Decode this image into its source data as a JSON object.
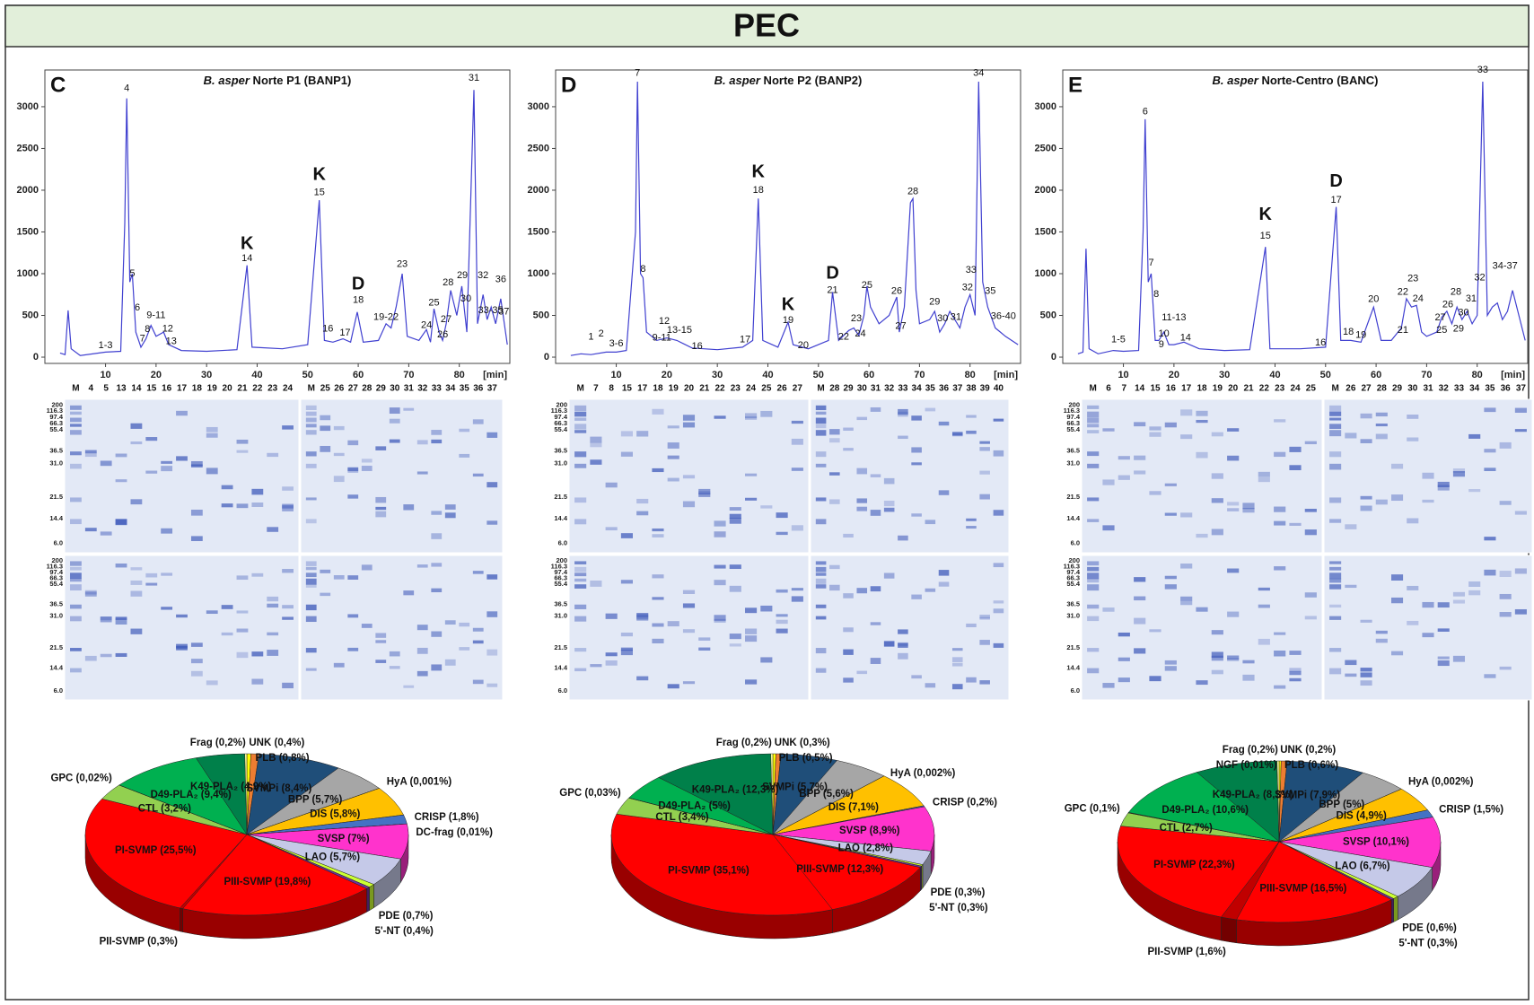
{
  "header": {
    "title": "PEC"
  },
  "gels": [
    {
      "lanes_left": [
        "M",
        "4",
        "5",
        "13",
        "14",
        "15",
        "16",
        "17",
        "18",
        "19",
        "20",
        "21",
        "22",
        "23",
        "24"
      ],
      "lanes_right": [
        "M",
        "25",
        "26",
        "27",
        "28",
        "29",
        "30",
        "31",
        "32",
        "33",
        "34",
        "35",
        "36",
        "37"
      ],
      "markers": [
        "200",
        "116.3",
        "97.4",
        "66.3",
        "55.4",
        "36.5",
        "31.0",
        "21.5",
        "14.4",
        "6.0"
      ]
    },
    {
      "lanes_left": [
        "M",
        "7",
        "8",
        "15",
        "17",
        "18",
        "19",
        "20",
        "21",
        "22",
        "23",
        "24",
        "25",
        "26",
        "27"
      ],
      "lanes_right": [
        "M",
        "28",
        "29",
        "30",
        "31",
        "32",
        "33",
        "34",
        "35",
        "36",
        "37",
        "38",
        "39",
        "40"
      ],
      "markers": [
        "200",
        "116.3",
        "97.4",
        "66.3",
        "55.4",
        "36.5",
        "31.0",
        "21.5",
        "14.4",
        "6.0"
      ]
    },
    {
      "lanes_left": [
        "M",
        "6",
        "7",
        "14",
        "15",
        "16",
        "17",
        "18",
        "19",
        "20",
        "21",
        "22",
        "23",
        "24",
        "25"
      ],
      "lanes_right": [
        "M",
        "26",
        "27",
        "28",
        "29",
        "30",
        "31",
        "32",
        "33",
        "34",
        "35",
        "36",
        "37"
      ],
      "markers": [
        "200",
        "116.3",
        "97.4",
        "66.3",
        "55.4",
        "36.5",
        "31.0",
        "21.5",
        "14.4",
        "6.0"
      ]
    }
  ],
  "chart_data": [
    {
      "type": "line",
      "panel_label": "C",
      "title_species": "B. asper",
      "title": " Norte P1 (BANP1)",
      "xlabel": "[min]",
      "color": "#4040d0",
      "xlim": [
        -2,
        90
      ],
      "ylim": [
        -75,
        3440
      ],
      "xticks": [
        10,
        20,
        30,
        40,
        50,
        60,
        70,
        80
      ],
      "yticks": [
        0,
        500,
        1000,
        1500,
        2000,
        2500,
        3000
      ],
      "x": [
        1,
        2,
        2.6,
        3.2,
        5,
        10,
        13,
        13.8,
        14.2,
        14.8,
        15.3,
        16,
        17,
        18,
        19,
        20,
        21.5,
        22.5,
        25,
        30,
        36,
        38,
        39,
        45,
        50,
        52.3,
        53.3,
        55,
        57,
        58.5,
        59.8,
        61,
        64,
        65.5,
        66.5,
        67.5,
        68.7,
        69.7,
        72,
        73.5,
        74.3,
        75,
        76,
        76.7,
        77.4,
        78.3,
        79.5,
        80.5,
        81.5,
        82.9,
        83.6,
        84.7,
        85.5,
        86.3,
        87.2,
        88.2,
        89.5
      ],
      "values": [
        50,
        30,
        560,
        100,
        20,
        60,
        70,
        1600,
        3100,
        900,
        1000,
        300,
        120,
        220,
        380,
        250,
        300,
        150,
        80,
        70,
        90,
        1100,
        120,
        100,
        150,
        1880,
        200,
        180,
        220,
        180,
        540,
        180,
        200,
        400,
        350,
        600,
        1000,
        250,
        200,
        330,
        180,
        580,
        300,
        200,
        400,
        800,
        500,
        850,
        300,
        3200,
        400,
        750,
        450,
        600,
        400,
        700,
        150
      ],
      "annotations": [
        {
          "text": "1-3",
          "x": 10,
          "y": 140
        },
        {
          "text": "4",
          "x": 14.2,
          "y": 3220
        },
        {
          "text": "5",
          "x": 15.3,
          "y": 1000
        },
        {
          "text": "6",
          "x": 16.3,
          "y": 590
        },
        {
          "text": "7",
          "x": 17.3,
          "y": 220
        },
        {
          "text": "8",
          "x": 18.3,
          "y": 330
        },
        {
          "text": "9-11",
          "x": 20,
          "y": 500
        },
        {
          "text": "12",
          "x": 22.3,
          "y": 340
        },
        {
          "text": "13",
          "x": 23,
          "y": 190
        },
        {
          "text": "14",
          "x": 38,
          "y": 1180
        },
        {
          "text": "K",
          "x": 38,
          "y": 1350
        },
        {
          "text": "15",
          "x": 52.3,
          "y": 1970
        },
        {
          "text": "K",
          "x": 52.3,
          "y": 2180
        },
        {
          "text": "16",
          "x": 54,
          "y": 340
        },
        {
          "text": "17",
          "x": 57.4,
          "y": 290
        },
        {
          "text": "18",
          "x": 60,
          "y": 680
        },
        {
          "text": "D",
          "x": 60,
          "y": 870
        },
        {
          "text": "19-22",
          "x": 65.5,
          "y": 480
        },
        {
          "text": "23",
          "x": 68.7,
          "y": 1110
        },
        {
          "text": "24",
          "x": 73.5,
          "y": 380
        },
        {
          "text": "25",
          "x": 75,
          "y": 650
        },
        {
          "text": "26",
          "x": 76.7,
          "y": 270
        },
        {
          "text": "27",
          "x": 77.4,
          "y": 450
        },
        {
          "text": "28",
          "x": 77.8,
          "y": 890
        },
        {
          "text": "29",
          "x": 80.6,
          "y": 980
        },
        {
          "text": "30",
          "x": 81.3,
          "y": 700
        },
        {
          "text": "31",
          "x": 82.9,
          "y": 3340
        },
        {
          "text": "32",
          "x": 84.7,
          "y": 980
        },
        {
          "text": "33-35",
          "x": 86.2,
          "y": 560
        },
        {
          "text": "36",
          "x": 88.2,
          "y": 930
        },
        {
          "text": "37",
          "x": 88.8,
          "y": 540
        }
      ]
    },
    {
      "type": "line",
      "panel_label": "D",
      "title_species": "B. asper",
      "title": " Norte P2 (BANP2)",
      "xlabel": "[min]",
      "color": "#4040d0",
      "xlim": [
        -2,
        90
      ],
      "ylim": [
        -75,
        3440
      ],
      "xticks": [
        10,
        20,
        30,
        40,
        50,
        60,
        70,
        80
      ],
      "yticks": [
        0,
        500,
        1000,
        1500,
        2000,
        2500,
        3000
      ],
      "x": [
        1,
        3,
        5,
        8,
        10,
        12,
        13.8,
        14.2,
        14.8,
        15.3,
        16,
        18,
        20,
        22,
        25,
        30,
        35,
        37,
        38.1,
        39,
        42,
        44,
        45,
        48,
        52,
        52.8,
        54,
        56,
        57,
        58,
        59,
        59.6,
        60.3,
        62,
        64,
        65.5,
        66,
        67,
        68.2,
        68.7,
        69.3,
        70,
        72,
        73,
        74,
        75,
        76,
        78,
        79,
        80,
        81,
        81.7,
        82.5,
        83.5,
        85,
        86,
        87,
        89.5
      ],
      "values": [
        20,
        40,
        30,
        60,
        60,
        80,
        1500,
        3300,
        1000,
        950,
        300,
        200,
        230,
        200,
        110,
        90,
        120,
        200,
        1900,
        200,
        120,
        420,
        150,
        100,
        200,
        780,
        200,
        320,
        350,
        260,
        500,
        850,
        600,
        400,
        500,
        720,
        300,
        600,
        1850,
        1900,
        800,
        400,
        450,
        550,
        300,
        400,
        550,
        350,
        600,
        750,
        500,
        3300,
        900,
        600,
        350,
        300,
        250,
        150
      ],
      "annotations": [
        {
          "text": "1",
          "x": 5,
          "y": 240
        },
        {
          "text": "2",
          "x": 7,
          "y": 280
        },
        {
          "text": "3-6",
          "x": 10,
          "y": 160
        },
        {
          "text": "7",
          "x": 14.2,
          "y": 3400
        },
        {
          "text": "8",
          "x": 15.3,
          "y": 1050
        },
        {
          "text": "9-11",
          "x": 19,
          "y": 230
        },
        {
          "text": "12",
          "x": 19.5,
          "y": 430
        },
        {
          "text": "13-15",
          "x": 22.5,
          "y": 320
        },
        {
          "text": "16",
          "x": 26,
          "y": 130
        },
        {
          "text": "17",
          "x": 35.5,
          "y": 210
        },
        {
          "text": "18",
          "x": 38.1,
          "y": 2000
        },
        {
          "text": "K",
          "x": 38.1,
          "y": 2210
        },
        {
          "text": "19",
          "x": 44,
          "y": 440
        },
        {
          "text": "K",
          "x": 44,
          "y": 620
        },
        {
          "text": "20",
          "x": 47,
          "y": 140
        },
        {
          "text": "21",
          "x": 52.8,
          "y": 800
        },
        {
          "text": "D",
          "x": 52.8,
          "y": 1000
        },
        {
          "text": "22",
          "x": 55,
          "y": 240
        },
        {
          "text": "23",
          "x": 57.5,
          "y": 460
        },
        {
          "text": "24",
          "x": 58.3,
          "y": 280
        },
        {
          "text": "25",
          "x": 59.6,
          "y": 860
        },
        {
          "text": "26",
          "x": 65.5,
          "y": 790
        },
        {
          "text": "27",
          "x": 66.3,
          "y": 370
        },
        {
          "text": "28",
          "x": 68.7,
          "y": 1980
        },
        {
          "text": "29",
          "x": 73,
          "y": 660
        },
        {
          "text": "30",
          "x": 74.6,
          "y": 460
        },
        {
          "text": "31",
          "x": 77.2,
          "y": 480
        },
        {
          "text": "32",
          "x": 79.5,
          "y": 830
        },
        {
          "text": "33",
          "x": 80.2,
          "y": 1040
        },
        {
          "text": "34",
          "x": 81.7,
          "y": 3400
        },
        {
          "text": "35",
          "x": 84,
          "y": 790
        },
        {
          "text": "36-40",
          "x": 86.6,
          "y": 490
        }
      ]
    },
    {
      "type": "line",
      "panel_label": "E",
      "title_species": "B. asper",
      "title": " Norte-Centro (BANC)",
      "xlabel": "[min]",
      "color": "#4040d0",
      "xlim": [
        -2,
        90
      ],
      "ylim": [
        -75,
        3440
      ],
      "xticks": [
        10,
        20,
        30,
        40,
        50,
        60,
        70,
        80
      ],
      "yticks": [
        0,
        500,
        1000,
        1500,
        2000,
        2500,
        3000
      ],
      "x": [
        1,
        2,
        2.6,
        3.2,
        5,
        8,
        10,
        13,
        13.9,
        14.3,
        14.9,
        15.5,
        16.3,
        17,
        18,
        19,
        20,
        22,
        25,
        30,
        35,
        38.1,
        39,
        45,
        50,
        52.1,
        53,
        55,
        57,
        59.5,
        61,
        63,
        65,
        66,
        67,
        68,
        69,
        70,
        72,
        73,
        74,
        75,
        76,
        77,
        78,
        79,
        80,
        81.1,
        82,
        83,
        84,
        85,
        86,
        87,
        89.5
      ],
      "values": [
        40,
        60,
        1300,
        100,
        40,
        80,
        70,
        80,
        1500,
        2850,
        900,
        1000,
        200,
        200,
        300,
        150,
        150,
        180,
        100,
        80,
        90,
        1320,
        100,
        100,
        120,
        1800,
        200,
        200,
        180,
        600,
        200,
        200,
        350,
        700,
        600,
        620,
        300,
        250,
        300,
        480,
        550,
        400,
        600,
        450,
        550,
        400,
        500,
        3300,
        500,
        600,
        650,
        450,
        550,
        800,
        200
      ],
      "annotations": [
        {
          "text": "1-5",
          "x": 9,
          "y": 210
        },
        {
          "text": "6",
          "x": 14.3,
          "y": 2940
        },
        {
          "text": "7",
          "x": 15.5,
          "y": 1130
        },
        {
          "text": "8",
          "x": 16.5,
          "y": 750
        },
        {
          "text": "9",
          "x": 17.5,
          "y": 150
        },
        {
          "text": "10",
          "x": 18,
          "y": 280
        },
        {
          "text": "11-13",
          "x": 20,
          "y": 470
        },
        {
          "text": "14",
          "x": 22.3,
          "y": 230
        },
        {
          "text": "15",
          "x": 38.1,
          "y": 1450
        },
        {
          "text": "K",
          "x": 38.1,
          "y": 1700
        },
        {
          "text": "16",
          "x": 49,
          "y": 170
        },
        {
          "text": "17",
          "x": 52.1,
          "y": 1880
        },
        {
          "text": "D",
          "x": 52.1,
          "y": 2100
        },
        {
          "text": "18",
          "x": 54.5,
          "y": 300
        },
        {
          "text": "19",
          "x": 57,
          "y": 260
        },
        {
          "text": "20",
          "x": 59.5,
          "y": 690
        },
        {
          "text": "21",
          "x": 65.3,
          "y": 320
        },
        {
          "text": "22",
          "x": 65.3,
          "y": 780
        },
        {
          "text": "23",
          "x": 67.3,
          "y": 940
        },
        {
          "text": "24",
          "x": 68.3,
          "y": 700
        },
        {
          "text": "25",
          "x": 73,
          "y": 320
        },
        {
          "text": "26",
          "x": 74.2,
          "y": 630
        },
        {
          "text": "27",
          "x": 72.7,
          "y": 470
        },
        {
          "text": "28",
          "x": 75.8,
          "y": 780
        },
        {
          "text": "29",
          "x": 76.3,
          "y": 340
        },
        {
          "text": "30",
          "x": 77.3,
          "y": 530
        },
        {
          "text": "31",
          "x": 78.8,
          "y": 700
        },
        {
          "text": "32",
          "x": 80.5,
          "y": 950
        },
        {
          "text": "33",
          "x": 81.1,
          "y": 3440
        },
        {
          "text": "34-37",
          "x": 85.5,
          "y": 1090
        }
      ]
    },
    {
      "type": "pie",
      "values": [
        0.4,
        0.8,
        8.4,
        5.7,
        0.001,
        5.8,
        1.8,
        0.01,
        7,
        5.7,
        0.7,
        0.4,
        19.8,
        0.3,
        25.5,
        3.2,
        0.02,
        9.4,
        4.9,
        0.2
      ],
      "value_labels": [
        "UNK (0,4%)",
        "PLB (0,8%)",
        "SVMPi (8,4%)",
        "BPP (5,7%)",
        "HyA (0,001%)",
        "DIS (5,8%)",
        "CRISP (1,8%)",
        "DC-frag (0,01%)",
        "SVSP (7%)",
        "LAO (5,7%)",
        "PDE (0,7%)",
        "5'-NT (0,4%)",
        "PIII-SVMP (19,8%)",
        "PII-SVMP (0,3%)",
        "PI-SVMP (25,5%)",
        "CTL (3,2%)",
        "GPC (0,02%)",
        "D49-PLA₂ (9,4%)",
        "K49-PLA₂ (4,9%)",
        "Frag (0,2%)"
      ],
      "colors": [
        "#ffff00",
        "#ed7d31",
        "#1f4e79",
        "#a6a6a6",
        "#c00000",
        "#ffc000",
        "#4472c4",
        "#002060",
        "#ff33cc",
        "#c5c9e8",
        "#ccff33",
        "#7030a0",
        "#ff0000",
        "#c00000",
        "#ff0000",
        "#92d050",
        "#385723",
        "#00b050",
        "#00804a",
        "#ffff99"
      ]
    },
    {
      "type": "pie",
      "values": [
        0.3,
        0.5,
        5.7,
        5.6,
        0.002,
        7.1,
        0.2,
        8.9,
        2.8,
        0.3,
        0.3,
        12.3,
        35.1,
        3.4,
        0.03,
        5,
        12.3,
        0.2
      ],
      "value_labels": [
        "UNK (0,3%)",
        "PLB (0,5%)",
        "SVMPi (5,7%)",
        "BPP (5,6%)",
        "HyA (0,002%)",
        "DIS (7,1%)",
        "CRISP (0,2%)",
        "SVSP (8,9%)",
        "LAO (2,8%)",
        "PDE (0,3%)",
        "5'-NT (0,3%)",
        "PIII-SVMP (12,3%)",
        "PI-SVMP (35,1%)",
        "CTL (3,4%)",
        "GPC (0,03%)",
        "D49-PLA₂ (5%)",
        "K49-PLA₂ (12,3%)",
        "Frag (0,2%)"
      ],
      "colors": [
        "#ffff00",
        "#ed7d31",
        "#1f4e79",
        "#a6a6a6",
        "#c00000",
        "#ffc000",
        "#4472c4",
        "#ff33cc",
        "#c5c9e8",
        "#ccff33",
        "#7030a0",
        "#ff0000",
        "#ff0000",
        "#92d050",
        "#385723",
        "#00b050",
        "#00804a",
        "#ffff99"
      ]
    },
    {
      "type": "pie",
      "values": [
        0.2,
        0.6,
        7.9,
        5,
        0.002,
        4.9,
        1.5,
        10.1,
        6.7,
        0.6,
        0.3,
        16.5,
        1.6,
        22.3,
        2.7,
        0.1,
        10.6,
        8.3,
        0.01,
        0.2
      ],
      "value_labels": [
        "UNK (0,2%)",
        "PLB (0,6%)",
        "SVMPi (7,9%)",
        "BPP (5%)",
        "HyA (0,002%)",
        "DIS (4,9%)",
        "CRISP (1,5%)",
        "SVSP (10,1%)",
        "LAO (6,7%)",
        "PDE (0,6%)",
        "5'-NT (0,3%)",
        "PIII-SVMP (16,5%)",
        "PII-SVMP (1,6%)",
        "PI-SVMP (22,3%)",
        "CTL (2,7%)",
        "GPC (0,1%)",
        "D49-PLA₂ (10,6%)",
        "K49-PLA₂ (8,3%)",
        "NGF (0,01%)",
        "Frag (0,2%)"
      ],
      "colors": [
        "#ffff00",
        "#ed7d31",
        "#1f4e79",
        "#a6a6a6",
        "#c00000",
        "#ffc000",
        "#4472c4",
        "#ff33cc",
        "#c5c9e8",
        "#ccff33",
        "#7030a0",
        "#ff0000",
        "#c00000",
        "#ff0000",
        "#92d050",
        "#385723",
        "#00b050",
        "#00804a",
        "#ff9900",
        "#ffff99"
      ]
    }
  ]
}
